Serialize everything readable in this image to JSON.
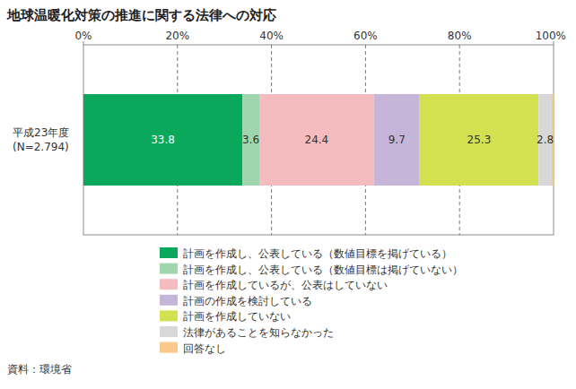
{
  "chart_data": {
    "type": "bar",
    "title": "地球温暖化対策の推進に関する法律への対応",
    "orientation": "horizontal",
    "stacked": true,
    "data_labels": true,
    "grid": true,
    "legend": "bottom",
    "categories": [
      "平成23年度\n(N=2.794)"
    ],
    "xlim": [
      0,
      100
    ],
    "xticks": [
      {
        "value": 0,
        "label": "0%"
      },
      {
        "value": 20,
        "label": "20%"
      },
      {
        "value": 40,
        "label": "40%"
      },
      {
        "value": 60,
        "label": "60%"
      },
      {
        "value": 80,
        "label": "80%"
      },
      {
        "value": 100,
        "label": "100%"
      }
    ],
    "series": [
      {
        "name": "計画を作成し、公表している（数値目標を掲げている）",
        "color": "#0aa85a",
        "values": [
          33.8
        ]
      },
      {
        "name": "計画を作成し、公表している（数値目標は掲げていない）",
        "color": "#9fd6ae",
        "values": [
          3.6
        ]
      },
      {
        "name": "計画を作成しているが、公表はしていない",
        "color": "#f5bcc0",
        "values": [
          24.4
        ]
      },
      {
        "name": "計画の作成を検討している",
        "color": "#c5b5d9",
        "values": [
          9.7
        ]
      },
      {
        "name": "計画を作成していない",
        "color": "#d3e04f",
        "values": [
          25.3
        ]
      },
      {
        "name": "法律があることを知らなかった",
        "color": "#d8d8d8",
        "values": [
          2.8
        ]
      },
      {
        "name": "回答なし",
        "color": "#f8c98a",
        "values": [
          0.4
        ],
        "value_labels": [
          null
        ]
      }
    ],
    "annotations": [
      "資料：環境省"
    ]
  }
}
